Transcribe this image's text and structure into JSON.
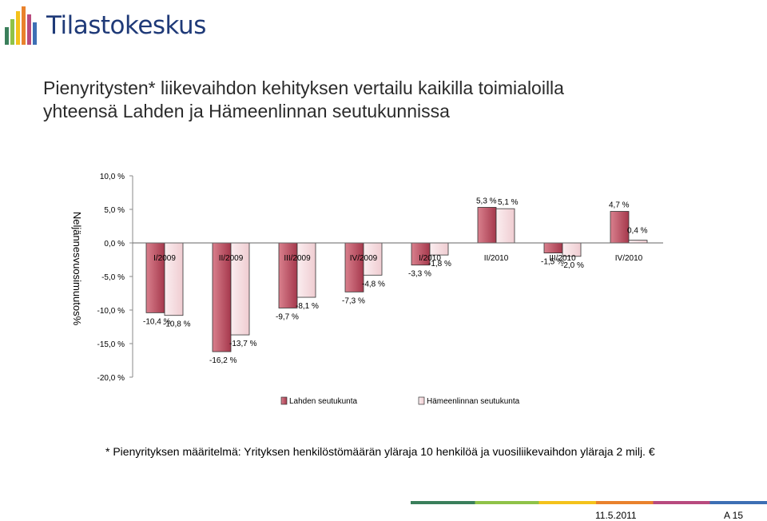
{
  "header": {
    "logo_text": "Tilastokeskus",
    "title_lines": [
      "Pienyritysten* liikevaihdon kehityksen vertailu kaikilla toimialoilla",
      "yhteensä Lahden ja Hämeenlinnan seutukunnissa"
    ]
  },
  "chart_data": {
    "type": "bar",
    "title": "",
    "ylabel": "Neljännesvuosimuutos%",
    "xlabel": "",
    "ylim": [
      -20,
      10
    ],
    "yticks": [
      "10,0 %",
      "5,0 %",
      "0,0 %",
      "-5,0 %",
      "-10,0 %",
      "-15,0 %",
      "-20,0 %"
    ],
    "ytick_values": [
      10,
      5,
      0,
      -5,
      -10,
      -15,
      -20
    ],
    "categories": [
      "I/2009",
      "II/2009",
      "III/2009",
      "IV/2009",
      "I/2010",
      "II/2010",
      "III/2010",
      "IV/2010"
    ],
    "series": [
      {
        "name": "Lahden seutukunta",
        "values": [
          -10.4,
          -16.2,
          -9.7,
          -7.3,
          -3.3,
          5.3,
          -1.5,
          4.7
        ],
        "labels": [
          "-10,4 %",
          "-16,2 %",
          "-9,7 %",
          "-7,3 %",
          "-3,3 %",
          "5,3 %",
          "-1,5 %",
          "4,7 %"
        ]
      },
      {
        "name": "Hämeenlinnan seutukunta",
        "values": [
          -10.8,
          -13.7,
          -8.1,
          -4.8,
          -1.8,
          5.1,
          -2.0,
          0.4
        ],
        "labels": [
          "-10,8 %",
          "-13,7 %",
          "-8,1 %",
          "-4,8 %",
          "-1,8 %",
          "5,1 %",
          "-2,0 %",
          "0,4 %"
        ]
      }
    ],
    "colors": [
      "#b84c5e",
      "#f6dde0"
    ],
    "legend_position": "bottom",
    "grid": false
  },
  "footnote": "* Pienyrityksen määritelmä: Yrityksen henkilöstömäärän yläraja 10 henkilöä ja vuosiliikevaihdon yläraja 2 milj. €",
  "footer": {
    "date": "11.5.2011",
    "page": "A 15"
  }
}
